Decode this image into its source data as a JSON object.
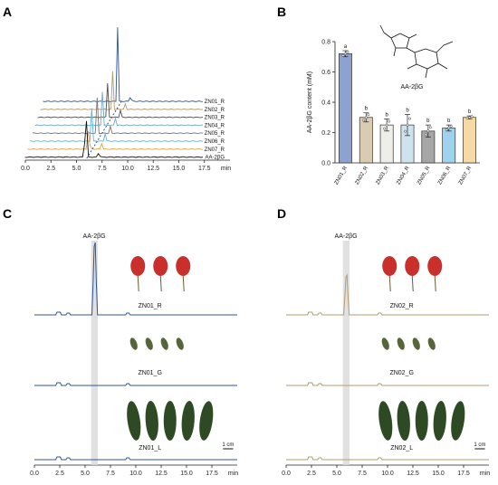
{
  "panels": {
    "a": "A",
    "b": "B",
    "c": "C",
    "d": "D"
  },
  "x_unit": "min",
  "x_ticks": [
    "0.0",
    "2.5",
    "5.0",
    "7.5",
    "10.0",
    "12.5",
    "15.0",
    "17.5"
  ],
  "compound_label": "AA-2βG",
  "scale_bar_label": "1 cm",
  "colors": {
    "ZN01": "#2f5597",
    "ZN02": "#b59a6d",
    "ZN03": "#4d4d4d",
    "ZN04": "#6fa8c8",
    "ZN05": "#777777",
    "ZN06": "#5bb3e0",
    "ZN07": "#e8a34a",
    "AA-2βG": "#111111",
    "highlight": "#d9d9d9",
    "berry": "#c9302c",
    "leaf": "#2e4a24"
  },
  "chart_data": [
    {
      "panel": "A",
      "type": "line",
      "xlabel": "min",
      "xlim": [
        0,
        20
      ],
      "series": [
        {
          "name": "ZN01_R",
          "peak_time": 9.0
        },
        {
          "name": "ZN02_R",
          "peak_time": 8.5
        },
        {
          "name": "ZN03_R",
          "peak_time": 8.0
        },
        {
          "name": "ZN04_R",
          "peak_time": 7.5
        },
        {
          "name": "ZN05_R",
          "peak_time": 7.0
        },
        {
          "name": "ZN06_R",
          "peak_time": 6.5
        },
        {
          "name": "ZN07_R",
          "peak_time": 6.2
        },
        {
          "name": "AA-2βG",
          "peak_time": 5.9
        }
      ]
    },
    {
      "panel": "B",
      "type": "bar",
      "ylabel": "AA-2βG content  (mM)",
      "ylim": [
        0,
        0.8
      ],
      "yticks": [
        "0.0",
        "0.2",
        "0.4",
        "0.6",
        "0.8"
      ],
      "categories": [
        "ZN01_R",
        "ZN02_R",
        "ZN03_R",
        "ZN04_R",
        "ZN05_R",
        "ZN06_R",
        "ZN07_R"
      ],
      "values": [
        0.72,
        0.3,
        0.25,
        0.25,
        0.21,
        0.23,
        0.3
      ],
      "errors": [
        0.02,
        0.03,
        0.04,
        0.07,
        0.04,
        0.02,
        0.01
      ],
      "letters": [
        "a",
        "b",
        "b",
        "b",
        "b",
        "b",
        "b"
      ],
      "bar_colors": [
        "#8da2d0",
        "#d9ccb3",
        "#efefea",
        "#cfe3ef",
        "#a6a6a6",
        "#9ed3f0",
        "#f7d9a6"
      ],
      "structure_label": "AA-2βG"
    },
    {
      "panel": "C",
      "type": "line",
      "xlabel": "min",
      "xlim": [
        0,
        20
      ],
      "series": [
        {
          "name": "ZN01_R",
          "peak_height": 1.0
        },
        {
          "name": "ZN01_G",
          "peak_height": 0.0
        },
        {
          "name": "ZN01_L",
          "peak_height": 0.0
        }
      ]
    },
    {
      "panel": "D",
      "type": "line",
      "xlabel": "min",
      "xlim": [
        0,
        20
      ],
      "series": [
        {
          "name": "ZN02_R",
          "peak_height": 0.55
        },
        {
          "name": "ZN02_G",
          "peak_height": 0.0
        },
        {
          "name": "ZN02_L",
          "peak_height": 0.0
        }
      ]
    }
  ]
}
